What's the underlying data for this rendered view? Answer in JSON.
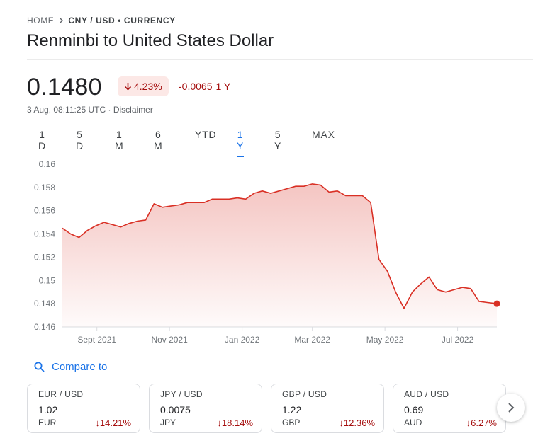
{
  "breadcrumb": {
    "home": "HOME",
    "current": "CNY / USD • CURRENCY"
  },
  "title": "Renminbi to United States Dollar",
  "quote": {
    "price": "0.1480",
    "change_pct": "4.23%",
    "change_abs": "-0.0065",
    "period": "1 Y",
    "timestamp": "3 Aug, 08:11:25 UTC · Disclaimer"
  },
  "tabs": [
    {
      "label": "1 D"
    },
    {
      "label": "5 D"
    },
    {
      "label": "1 M"
    },
    {
      "label": "6 M"
    },
    {
      "label": "YTD"
    },
    {
      "label": "1 Y",
      "active": true
    },
    {
      "label": "5 Y"
    },
    {
      "label": "MAX"
    }
  ],
  "colors": {
    "negative": "#a50e0e",
    "line": "#d93025",
    "accent": "#1a73e8",
    "badge_bg": "#fce8e6"
  },
  "chart_data": {
    "type": "area",
    "ylim": [
      0.146,
      0.16
    ],
    "yticks": [
      "0.16",
      "0.158",
      "0.156",
      "0.154",
      "0.152",
      "0.15",
      "0.148",
      "0.146"
    ],
    "xticks": [
      "Sept 2021",
      "Nov 2021",
      "Jan 2022",
      "Mar 2022",
      "May 2022",
      "Jul 2022"
    ],
    "grid": false,
    "x": [
      "2021-08-03",
      "2021-08-10",
      "2021-08-17",
      "2021-08-24",
      "2021-08-31",
      "2021-09-07",
      "2021-09-14",
      "2021-09-21",
      "2021-09-28",
      "2021-10-05",
      "2021-10-12",
      "2021-10-19",
      "2021-10-26",
      "2021-11-02",
      "2021-11-09",
      "2021-11-16",
      "2021-11-23",
      "2021-11-30",
      "2021-12-07",
      "2021-12-14",
      "2021-12-21",
      "2021-12-28",
      "2022-01-04",
      "2022-01-11",
      "2022-01-18",
      "2022-01-25",
      "2022-02-01",
      "2022-02-08",
      "2022-02-15",
      "2022-02-22",
      "2022-03-01",
      "2022-03-08",
      "2022-03-15",
      "2022-03-22",
      "2022-03-29",
      "2022-04-05",
      "2022-04-12",
      "2022-04-19",
      "2022-04-26",
      "2022-05-03",
      "2022-05-10",
      "2022-05-17",
      "2022-05-24",
      "2022-05-31",
      "2022-06-07",
      "2022-06-14",
      "2022-06-21",
      "2022-06-28",
      "2022-07-05",
      "2022-07-12",
      "2022-07-19",
      "2022-07-26",
      "2022-08-03"
    ],
    "series": [
      {
        "values": [
          0.1545,
          0.154,
          0.1537,
          0.1543,
          0.1547,
          0.155,
          0.1548,
          0.1546,
          0.1549,
          0.1551,
          0.1552,
          0.1566,
          0.1563,
          0.1564,
          0.1565,
          0.1567,
          0.1567,
          0.1567,
          0.157,
          0.157,
          0.157,
          0.1571,
          0.157,
          0.1575,
          0.1577,
          0.1575,
          0.1577,
          0.1579,
          0.1581,
          0.1581,
          0.1583,
          0.1582,
          0.1576,
          0.1577,
          0.1573,
          0.1573,
          0.1573,
          0.1567,
          0.1518,
          0.1508,
          0.149,
          0.1476,
          0.149,
          0.1497,
          0.1503,
          0.1492,
          0.149,
          0.1492,
          0.1494,
          0.1493,
          0.1482,
          0.1481,
          0.148
        ]
      }
    ]
  },
  "compare": {
    "label": "Compare to"
  },
  "cards": [
    {
      "pair": "EUR / USD",
      "value": "1.02",
      "code": "EUR",
      "change": "14.21%"
    },
    {
      "pair": "JPY / USD",
      "value": "0.0075",
      "code": "JPY",
      "change": "18.14%"
    },
    {
      "pair": "GBP / USD",
      "value": "1.22",
      "code": "GBP",
      "change": "12.36%"
    },
    {
      "pair": "AUD / USD",
      "value": "0.69",
      "code": "AUD",
      "change": "6.27%"
    }
  ]
}
